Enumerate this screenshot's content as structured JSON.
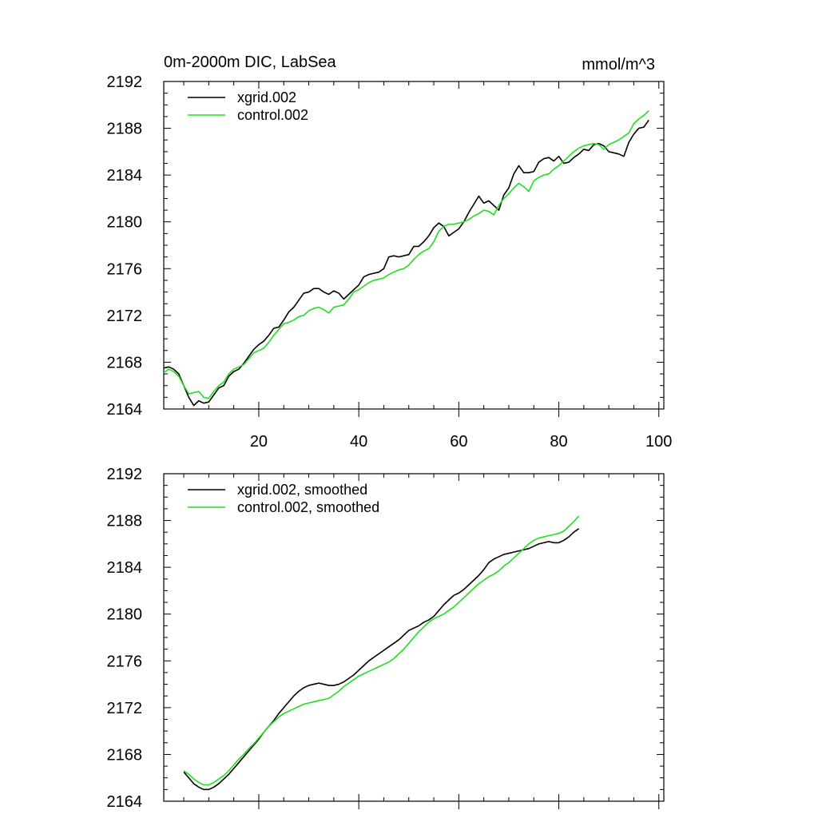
{
  "colors": {
    "series1": "#000000",
    "series2": "#1fe01f",
    "axis": "#000000",
    "background": "#ffffff"
  },
  "chart_data": [
    {
      "type": "line",
      "title": "0m-2000m DIC, LabSea",
      "units": "mmol/m^3",
      "xlim": [
        1,
        101
      ],
      "ylim": [
        2164,
        2192
      ],
      "xticks": [
        20,
        40,
        60,
        80,
        100
      ],
      "xticks_labeled": true,
      "yticks": [
        2164,
        2168,
        2172,
        2176,
        2180,
        2184,
        2188,
        2192
      ],
      "legend_position": "top-left",
      "series": [
        {
          "name": "xgrid.002",
          "x_start": 1,
          "x_step": 1,
          "values": [
            2167.5,
            2167.6,
            2167.4,
            2167.0,
            2166.0,
            2165.0,
            2164.3,
            2164.7,
            2164.5,
            2164.6,
            2165.2,
            2165.8,
            2166.0,
            2166.8,
            2167.2,
            2167.4,
            2167.9,
            2168.5,
            2169.1,
            2169.5,
            2169.8,
            2170.3,
            2170.9,
            2171.0,
            2171.6,
            2172.3,
            2172.7,
            2173.3,
            2173.9,
            2174.0,
            2174.3,
            2174.3,
            2174.0,
            2173.8,
            2174.1,
            2173.9,
            2173.4,
            2173.8,
            2174.2,
            2174.6,
            2175.3,
            2175.5,
            2175.6,
            2175.7,
            2176.0,
            2177.0,
            2177.1,
            2177.0,
            2177.1,
            2177.2,
            2177.9,
            2177.9,
            2178.3,
            2178.8,
            2179.5,
            2179.9,
            2179.6,
            2178.8,
            2179.1,
            2179.4,
            2180.0,
            2180.8,
            2181.5,
            2182.2,
            2181.6,
            2181.8,
            2181.4,
            2181.0,
            2182.3,
            2182.9,
            2184.1,
            2184.8,
            2184.2,
            2184.2,
            2184.3,
            2185.1,
            2185.4,
            2185.5,
            2185.2,
            2185.6,
            2185.0,
            2185.1,
            2185.5,
            2185.8,
            2186.2,
            2186.1,
            2186.6,
            2186.7,
            2186.5,
            2186.0,
            2185.9,
            2185.8,
            2185.6,
            2186.8,
            2187.5,
            2188.0,
            2188.1,
            2188.7
          ]
        },
        {
          "name": "control.002",
          "x_start": 1,
          "x_step": 1,
          "values": [
            2167.1,
            2167.4,
            2167.2,
            2166.8,
            2166.0,
            2165.3,
            2165.4,
            2165.5,
            2165.0,
            2164.9,
            2165.5,
            2166.0,
            2166.3,
            2167.0,
            2167.4,
            2167.6,
            2167.8,
            2168.3,
            2168.8,
            2169.0,
            2169.2,
            2169.7,
            2170.3,
            2170.8,
            2171.3,
            2171.4,
            2171.6,
            2171.9,
            2172.0,
            2172.4,
            2172.6,
            2172.7,
            2172.5,
            2172.2,
            2172.7,
            2172.8,
            2172.9,
            2173.4,
            2174.0,
            2174.2,
            2174.5,
            2174.8,
            2175.0,
            2175.1,
            2175.2,
            2175.5,
            2175.7,
            2175.9,
            2176.0,
            2176.3,
            2176.8,
            2177.2,
            2177.5,
            2177.7,
            2178.3,
            2179.2,
            2179.6,
            2179.8,
            2179.8,
            2179.9,
            2180.0,
            2180.2,
            2180.5,
            2180.7,
            2181.0,
            2180.9,
            2180.6,
            2181.4,
            2182.0,
            2182.4,
            2182.9,
            2183.3,
            2183.0,
            2182.6,
            2183.5,
            2183.8,
            2184.0,
            2184.1,
            2184.5,
            2184.8,
            2185.2,
            2185.6,
            2186.0,
            2186.3,
            2186.5,
            2186.6,
            2186.7,
            2186.6,
            2186.2,
            2186.6,
            2186.8,
            2187.0,
            2187.3,
            2187.6,
            2188.4,
            2188.8,
            2189.1,
            2189.5
          ]
        }
      ]
    },
    {
      "type": "line",
      "title": "",
      "units": "",
      "xlim": [
        1,
        101
      ],
      "ylim": [
        2164,
        2192
      ],
      "xticks": [
        20,
        40,
        60,
        80,
        100
      ],
      "xticks_labeled": false,
      "yticks": [
        2164,
        2168,
        2172,
        2176,
        2180,
        2184,
        2188,
        2192
      ],
      "legend_position": "top-left",
      "series": [
        {
          "name": "xgrid.002, smoothed",
          "x_start": 5,
          "x_step": 1,
          "values": [
            2166.5,
            2166.0,
            2165.5,
            2165.2,
            2165.0,
            2165.0,
            2165.2,
            2165.5,
            2165.9,
            2166.3,
            2166.8,
            2167.3,
            2167.8,
            2168.3,
            2168.8,
            2169.3,
            2169.9,
            2170.4,
            2170.9,
            2171.5,
            2172.0,
            2172.5,
            2173.0,
            2173.4,
            2173.7,
            2173.9,
            2174.0,
            2174.1,
            2174.0,
            2173.9,
            2173.9,
            2174.0,
            2174.2,
            2174.5,
            2174.8,
            2175.2,
            2175.6,
            2176.0,
            2176.3,
            2176.6,
            2176.9,
            2177.2,
            2177.5,
            2177.8,
            2178.2,
            2178.6,
            2178.8,
            2179.0,
            2179.3,
            2179.5,
            2179.8,
            2180.3,
            2180.8,
            2181.2,
            2181.6,
            2181.8,
            2182.1,
            2182.5,
            2182.9,
            2183.3,
            2183.8,
            2184.4,
            2184.7,
            2184.9,
            2185.1,
            2185.2,
            2185.3,
            2185.4,
            2185.5,
            2185.6,
            2185.8,
            2186.0,
            2186.1,
            2186.2,
            2186.1,
            2186.1,
            2186.3,
            2186.6,
            2187.0,
            2187.3
          ]
        },
        {
          "name": "control.002, smoothed",
          "x_start": 5,
          "x_step": 1,
          "values": [
            2166.6,
            2166.3,
            2165.9,
            2165.6,
            2165.4,
            2165.4,
            2165.6,
            2165.9,
            2166.2,
            2166.6,
            2167.1,
            2167.6,
            2168.0,
            2168.5,
            2168.9,
            2169.4,
            2169.9,
            2170.4,
            2170.8,
            2171.2,
            2171.5,
            2171.7,
            2171.9,
            2172.1,
            2172.3,
            2172.4,
            2172.5,
            2172.6,
            2172.7,
            2172.8,
            2173.1,
            2173.4,
            2173.8,
            2174.1,
            2174.4,
            2174.7,
            2174.9,
            2175.1,
            2175.3,
            2175.5,
            2175.7,
            2175.9,
            2176.2,
            2176.6,
            2177.0,
            2177.5,
            2178.0,
            2178.5,
            2178.9,
            2179.3,
            2179.6,
            2179.8,
            2180.0,
            2180.3,
            2180.6,
            2181.0,
            2181.4,
            2181.8,
            2182.2,
            2182.6,
            2182.9,
            2183.2,
            2183.4,
            2183.7,
            2184.1,
            2184.4,
            2184.8,
            2185.2,
            2185.6,
            2186.0,
            2186.3,
            2186.5,
            2186.6,
            2186.7,
            2186.8,
            2186.9,
            2187.1,
            2187.5,
            2187.9,
            2188.4
          ]
        }
      ]
    }
  ]
}
